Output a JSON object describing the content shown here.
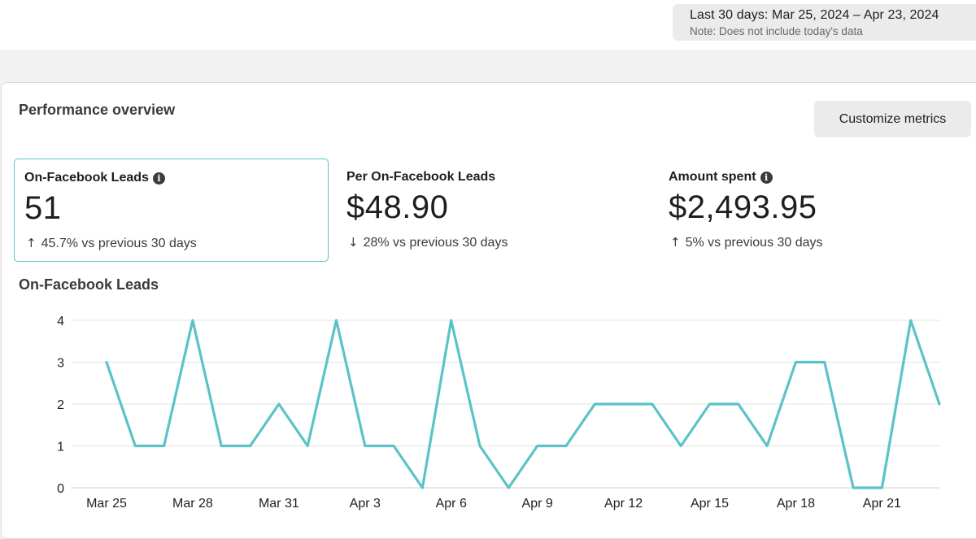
{
  "date_range": {
    "label": "Last 30 days: Mar 25, 2024 – Apr 23, 2024",
    "note": "Note: Does not include today's data"
  },
  "overview": {
    "title": "Performance overview",
    "customize_label": "Customize metrics"
  },
  "metrics": [
    {
      "label": "On-Facebook Leads",
      "value": "51",
      "delta": "45.7% vs previous 30 days",
      "direction": "up",
      "has_info": true,
      "selected": true
    },
    {
      "label": "Per On-Facebook Leads",
      "value": "$48.90",
      "delta": "28% vs previous 30 days",
      "direction": "down",
      "has_info": false,
      "selected": false
    },
    {
      "label": "Amount spent",
      "value": "$2,493.95",
      "delta": "5% vs previous 30 days",
      "direction": "up",
      "has_info": true,
      "selected": false
    }
  ],
  "icons": {
    "arrow_up": "↑",
    "arrow_down": "↓",
    "info": "i"
  },
  "colors": {
    "line": "#5bc3c7",
    "selected_border": "#5bc3c7"
  },
  "chart_data": {
    "type": "line",
    "title": "On-Facebook Leads",
    "xlabel": "",
    "ylabel": "",
    "ylim": [
      0,
      4
    ],
    "yticks": [
      0,
      1,
      2,
      3,
      4
    ],
    "grid": true,
    "x": [
      "Mar 25",
      "Mar 26",
      "Mar 27",
      "Mar 28",
      "Mar 29",
      "Mar 30",
      "Mar 31",
      "Apr 1",
      "Apr 2",
      "Apr 3",
      "Apr 4",
      "Apr 5",
      "Apr 6",
      "Apr 7",
      "Apr 8",
      "Apr 9",
      "Apr 10",
      "Apr 11",
      "Apr 12",
      "Apr 13",
      "Apr 14",
      "Apr 15",
      "Apr 16",
      "Apr 17",
      "Apr 18",
      "Apr 19",
      "Apr 20",
      "Apr 21",
      "Apr 22",
      "Apr 23"
    ],
    "xtick_labels": [
      "Mar 25",
      "Mar 28",
      "Mar 31",
      "Apr 3",
      "Apr 6",
      "Apr 9",
      "Apr 12",
      "Apr 15",
      "Apr 18",
      "Apr 21"
    ],
    "series": [
      {
        "values": [
          3,
          1,
          1,
          4,
          1,
          1,
          2,
          1,
          4,
          1,
          1,
          0,
          4,
          1,
          0,
          1,
          1,
          2,
          2,
          2,
          1,
          2,
          2,
          1,
          3,
          3,
          0,
          0,
          4,
          2
        ]
      }
    ]
  }
}
